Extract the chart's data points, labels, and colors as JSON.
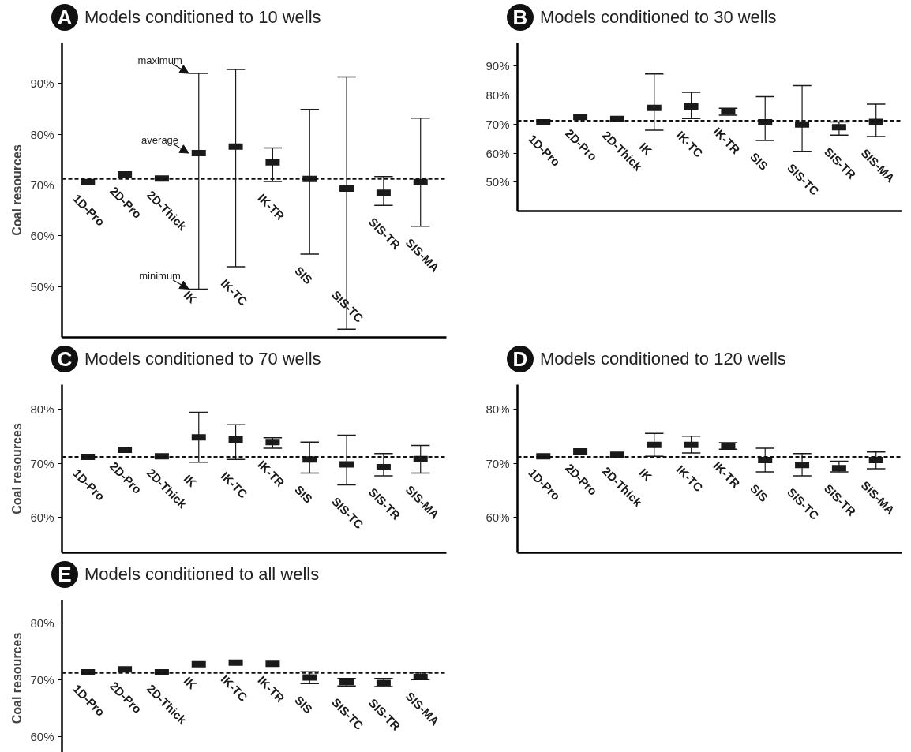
{
  "chart_data": [
    {
      "type": "scatter",
      "title": "Models conditioned to 10 wells",
      "ylabel": "Coal resources",
      "categories": [
        "1D-Pro",
        "2D-Pro",
        "2D-Thick",
        "IK",
        "IK-TC",
        "IK-TR",
        "SIS",
        "SIS-TC",
        "SIS-TR",
        "SIS-MA"
      ],
      "series": [
        {
          "color": "#1a1a1a",
          "values": [
            70.6,
            72.1,
            71.3,
            76.3,
            77.6,
            74.5,
            71.2,
            69.3,
            68.5,
            70.6
          ],
          "errors": [
            null,
            null,
            null,
            [
              49.5,
              92.0
            ],
            [
              53.9,
              92.8
            ],
            [
              70.7,
              77.3
            ],
            [
              56.4,
              84.9
            ],
            [
              41.6,
              91.3
            ],
            [
              66.0,
              71.7
            ],
            [
              61.9,
              83.2
            ]
          ]
        }
      ],
      "ylim": [
        40,
        98
      ],
      "yticks": [
        {
          "value": 50,
          "label": "50%"
        },
        {
          "value": 60,
          "label": "60%"
        },
        {
          "value": 70,
          "label": "70%"
        },
        {
          "value": 80,
          "label": "80%"
        },
        {
          "value": 90,
          "label": "90%"
        }
      ],
      "ref_lines": [
        {
          "axis": "y",
          "value": 71.2,
          "line_style": "dashed"
        }
      ],
      "annotations": [
        "A",
        "maximum",
        "average",
        "minimum"
      ]
    },
    {
      "type": "scatter",
      "title": "Models conditioned to 30 wells",
      "categories": [
        "1D-Pro",
        "2D-Pro",
        "2D-Thick",
        "IK",
        "IK-TC",
        "IK-TR",
        "SIS",
        "SIS-TC",
        "SIS-TR",
        "SIS-MA"
      ],
      "series": [
        {
          "color": "#1a1a1a",
          "values": [
            70.6,
            72.5,
            71.8,
            75.6,
            76.1,
            74.3,
            70.6,
            69.9,
            68.9,
            70.8
          ],
          "errors": [
            null,
            null,
            null,
            [
              67.9,
              87.3
            ],
            [
              71.9,
              81.0
            ],
            [
              73.1,
              75.5
            ],
            [
              64.4,
              79.5
            ],
            [
              60.6,
              83.3
            ],
            [
              66.2,
              70.8
            ],
            [
              65.7,
              76.9
            ]
          ]
        }
      ],
      "ylim": [
        40,
        98
      ],
      "yticks": [
        {
          "value": 50,
          "label": "50%"
        },
        {
          "value": 60,
          "label": "60%"
        },
        {
          "value": 70,
          "label": "70%"
        },
        {
          "value": 80,
          "label": "80%"
        },
        {
          "value": 90,
          "label": "90%"
        }
      ],
      "ref_lines": [
        {
          "axis": "y",
          "value": 71.2,
          "line_style": "dashed"
        }
      ],
      "annotations": [
        "B"
      ]
    },
    {
      "type": "scatter",
      "title": "Models conditioned to 70 wells",
      "ylabel": "Coal resources",
      "categories": [
        "1D-Pro",
        "2D-Pro",
        "2D-Thick",
        "IK",
        "IK-TC",
        "IK-TR",
        "SIS",
        "SIS-TC",
        "SIS-TR",
        "SIS-MA"
      ],
      "series": [
        {
          "color": "#1a1a1a",
          "values": [
            71.2,
            72.5,
            71.3,
            74.8,
            74.4,
            73.9,
            70.7,
            69.8,
            69.3,
            70.8
          ],
          "errors": [
            null,
            null,
            null,
            [
              70.2,
              79.4
            ],
            [
              70.7,
              77.1
            ],
            [
              72.8,
              74.7
            ],
            [
              68.2,
              73.9
            ],
            [
              66.0,
              75.2
            ],
            [
              67.7,
              71.8
            ],
            [
              68.2,
              73.3
            ]
          ]
        }
      ],
      "ylim": [
        53.5,
        84.5
      ],
      "yticks": [
        {
          "value": 60,
          "label": "60%"
        },
        {
          "value": 70,
          "label": "70%"
        },
        {
          "value": 80,
          "label": "80%"
        }
      ],
      "ref_lines": [
        {
          "axis": "y",
          "value": 71.2,
          "line_style": "dashed"
        }
      ],
      "annotations": [
        "C"
      ]
    },
    {
      "type": "scatter",
      "title": "Models conditioned to 120 wells",
      "categories": [
        "1D-Pro",
        "2D-Pro",
        "2D-Thick",
        "IK",
        "IK-TC",
        "IK-TR",
        "SIS",
        "SIS-TC",
        "SIS-TR",
        "SIS-MA"
      ],
      "series": [
        {
          "color": "#1a1a1a",
          "values": [
            71.3,
            72.2,
            71.6,
            73.4,
            73.4,
            73.2,
            70.6,
            69.7,
            69.1,
            70.6
          ],
          "errors": [
            null,
            null,
            null,
            [
              71.3,
              75.5
            ],
            [
              71.9,
              75.0
            ],
            [
              72.6,
              73.8
            ],
            [
              68.4,
              72.8
            ],
            [
              67.7,
              71.8
            ],
            [
              68.4,
              70.4
            ],
            [
              69.0,
              72.1
            ]
          ]
        }
      ],
      "ylim": [
        53.5,
        84.5
      ],
      "yticks": [
        {
          "value": 60,
          "label": "60%"
        },
        {
          "value": 70,
          "label": "70%"
        },
        {
          "value": 80,
          "label": "80%"
        }
      ],
      "ref_lines": [
        {
          "axis": "y",
          "value": 71.2,
          "line_style": "dashed"
        }
      ],
      "annotations": [
        "D"
      ]
    },
    {
      "type": "scatter",
      "title": "Models conditioned to all wells",
      "ylabel": "Coal resources",
      "categories": [
        "1D-Pro",
        "2D-Pro",
        "2D-Thick",
        "IK",
        "IK-TC",
        "IK-TR",
        "SIS",
        "SIS-TC",
        "SIS-TR",
        "SIS-MA"
      ],
      "series": [
        {
          "color": "#1a1a1a",
          "values": [
            71.3,
            71.8,
            71.3,
            72.7,
            73.0,
            72.8,
            70.4,
            69.6,
            69.4,
            70.5
          ],
          "errors": [
            null,
            null,
            null,
            null,
            null,
            null,
            [
              69.3,
              71.4
            ],
            [
              68.9,
              70.2
            ],
            [
              68.8,
              70.2
            ],
            [
              70.0,
              71.3
            ]
          ]
        }
      ],
      "ylim": [
        56.5,
        84
      ],
      "yticks": [
        {
          "value": 60,
          "label": "60%"
        },
        {
          "value": 70,
          "label": "70%"
        },
        {
          "value": 80,
          "label": "80%"
        }
      ],
      "ref_lines": [
        {
          "axis": "y",
          "value": 71.2,
          "line_style": "dashed"
        }
      ],
      "annotations": [
        "E"
      ]
    }
  ]
}
